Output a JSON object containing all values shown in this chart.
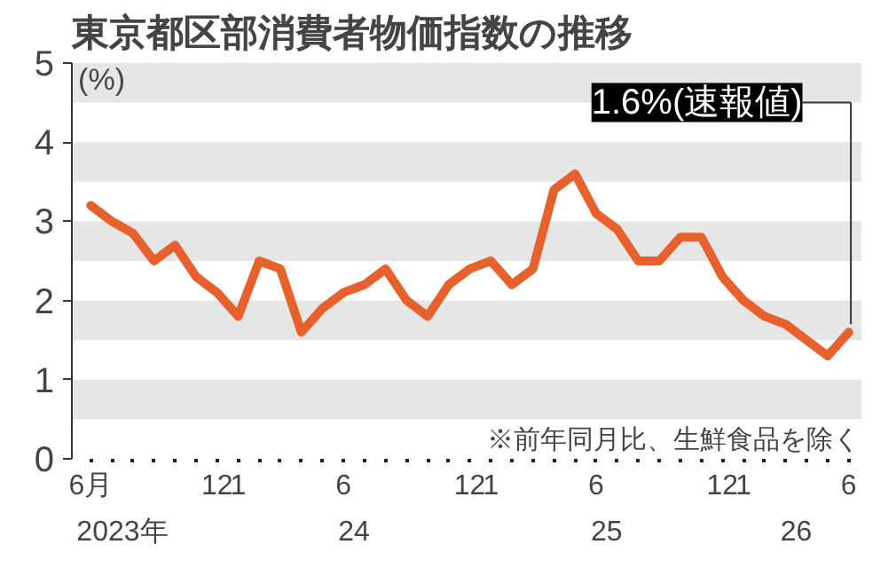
{
  "chart_data": {
    "type": "line",
    "title": "東京都区部消費者物価指数の推移",
    "ylabel": "(%)",
    "categories": [
      "6月",
      null,
      null,
      null,
      null,
      null,
      "12",
      "1",
      null,
      null,
      null,
      null,
      "6",
      null,
      null,
      null,
      null,
      null,
      "12",
      "1",
      null,
      null,
      null,
      null,
      "6",
      null,
      null,
      null,
      null,
      null,
      "12",
      "1",
      null,
      null,
      null,
      null,
      "6"
    ],
    "series": [
      {
        "color": "#e8602c",
        "values": [
          3.2,
          3.0,
          2.85,
          2.5,
          2.7,
          2.3,
          2.1,
          1.8,
          2.5,
          2.4,
          1.6,
          1.9,
          2.1,
          2.2,
          2.4,
          2.0,
          1.8,
          2.2,
          2.4,
          2.5,
          2.2,
          2.4,
          3.4,
          3.6,
          3.1,
          2.9,
          2.5,
          2.5,
          2.8,
          2.8,
          2.3,
          2.0,
          1.8,
          1.7,
          1.5,
          1.3,
          1.6
        ]
      }
    ],
    "ylim": [
      0,
      5
    ],
    "yticks": [
      0,
      1,
      2,
      3,
      4,
      5
    ],
    "grid": false,
    "marker": "none",
    "line_style": "solid",
    "bands": [
      {
        "axis": "y",
        "from": 0.5,
        "to": 1,
        "color": "#e6e6e6"
      },
      {
        "axis": "y",
        "from": 1.5,
        "to": 2,
        "color": "#e6e6e6"
      },
      {
        "axis": "y",
        "from": 2.5,
        "to": 3,
        "color": "#e6e6e6"
      },
      {
        "axis": "y",
        "from": 3.5,
        "to": 4,
        "color": "#e6e6e6"
      },
      {
        "axis": "y",
        "from": 4.5,
        "to": 5,
        "color": "#e6e6e6"
      }
    ],
    "annotations": [
      "1.6%(速報値)",
      "※前年同月比、生鮮食品を除く",
      "2023年",
      "24",
      "25",
      "26"
    ]
  }
}
